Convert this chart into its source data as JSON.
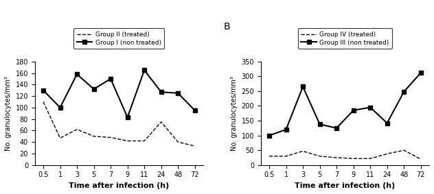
{
  "x_labels": [
    "0.5",
    "1",
    "3",
    "5",
    "7",
    "9",
    "11",
    "24",
    "48",
    "72"
  ],
  "x_positions": [
    0,
    1,
    2,
    3,
    4,
    5,
    6,
    7,
    8,
    9
  ],
  "panel_A": {
    "group1_solid": [
      130,
      100,
      158,
      132,
      150,
      83,
      165,
      127,
      125,
      95
    ],
    "group2_dashed": [
      110,
      47,
      62,
      50,
      48,
      42,
      42,
      75,
      40,
      33
    ],
    "ylabel": "No. granulocytes/mm³",
    "xlabel": "Time after infection (h)",
    "ylim": [
      0,
      180
    ],
    "yticks": [
      0,
      20,
      40,
      60,
      80,
      100,
      120,
      140,
      160,
      180
    ],
    "legend_solid": "Group I (non treated)",
    "legend_dashed": "Group II (treated)"
  },
  "panel_B": {
    "group3_solid": [
      100,
      120,
      265,
      138,
      125,
      185,
      195,
      142,
      248,
      312
    ],
    "group4_dashed": [
      30,
      30,
      47,
      30,
      25,
      22,
      22,
      38,
      50,
      20
    ],
    "ylabel": "No. granulocytes/mm³",
    "xlabel": "Time after infection (h)",
    "ylim": [
      0,
      350
    ],
    "yticks": [
      0,
      50,
      100,
      150,
      200,
      250,
      300,
      350
    ],
    "legend_solid": "Group III (non treated)",
    "legend_dashed": "Group IV (treated)",
    "panel_label": "B"
  }
}
